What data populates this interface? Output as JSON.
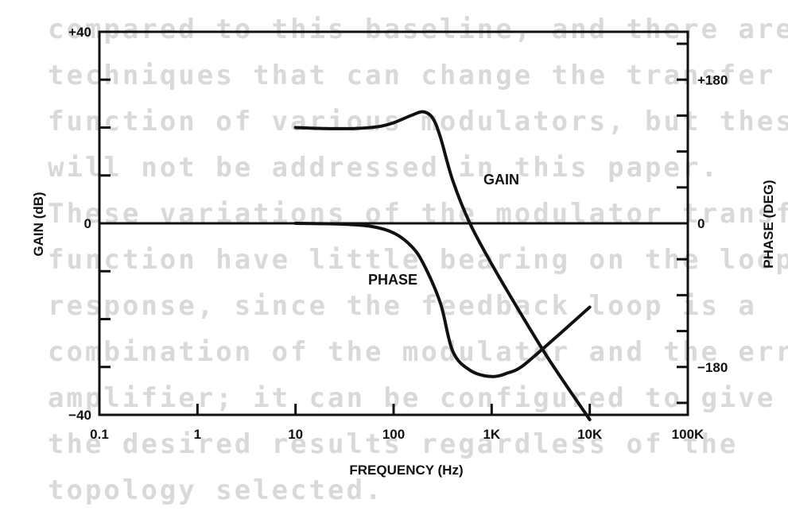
{
  "chart_data": {
    "type": "line",
    "title": "",
    "xlabel": "FREQUENCY (Hz)",
    "ylabel_left": "GAIN (dB)",
    "ylabel_right": "PHASE (DEG)",
    "x_scale": "log",
    "xlim": [
      0.1,
      100000
    ],
    "x_ticks": [
      0.1,
      1,
      10,
      100,
      1000,
      10000,
      100000
    ],
    "x_tick_labels": [
      "0.1",
      "1",
      "10",
      "100",
      "1K",
      "10K",
      "100K"
    ],
    "ylim_left": [
      -40,
      40
    ],
    "y_ticks_left": [
      40,
      0,
      -40
    ],
    "y_tick_labels_left": [
      "+40",
      "0",
      "−40"
    ],
    "ylim_right": [
      -240,
      240
    ],
    "y_ticks_right": [
      180,
      0,
      -180
    ],
    "y_tick_labels_right": [
      "+180",
      "0",
      "−180"
    ],
    "series": [
      {
        "name": "GAIN",
        "axis": "left",
        "x": [
          10,
          20,
          40,
          70,
          100,
          150,
          200,
          250,
          300,
          400,
          600,
          1000,
          2000,
          4000,
          10000
        ],
        "y": [
          20,
          19.8,
          19.8,
          20.2,
          21,
          22.5,
          23.3,
          22,
          18,
          9,
          0,
          -8.5,
          -19,
          -29,
          -41
        ]
      },
      {
        "name": "PHASE",
        "axis": "right",
        "x": [
          10,
          30,
          60,
          100,
          150,
          200,
          300,
          400,
          600,
          1000,
          1500,
          2000,
          3000,
          5000,
          10000
        ],
        "y": [
          0,
          -1,
          -4,
          -12,
          -28,
          -50,
          -100,
          -160,
          -184,
          -192,
          -187,
          -180,
          -162,
          -138,
          -105
        ]
      }
    ]
  },
  "background_text": [
    "compared to this baseline, and there are",
    "techniques that can change the transfer",
    "function of various modulators, but these",
    "will not be addressed in this paper.",
    "These variations of the modulator transfer",
    "function have little bearing on the loop",
    "response, since the feedback loop is a",
    "combination of the modulator and the error",
    "amplifier; it can be configured to give",
    "the desired results regardless of the",
    "topology selected."
  ]
}
